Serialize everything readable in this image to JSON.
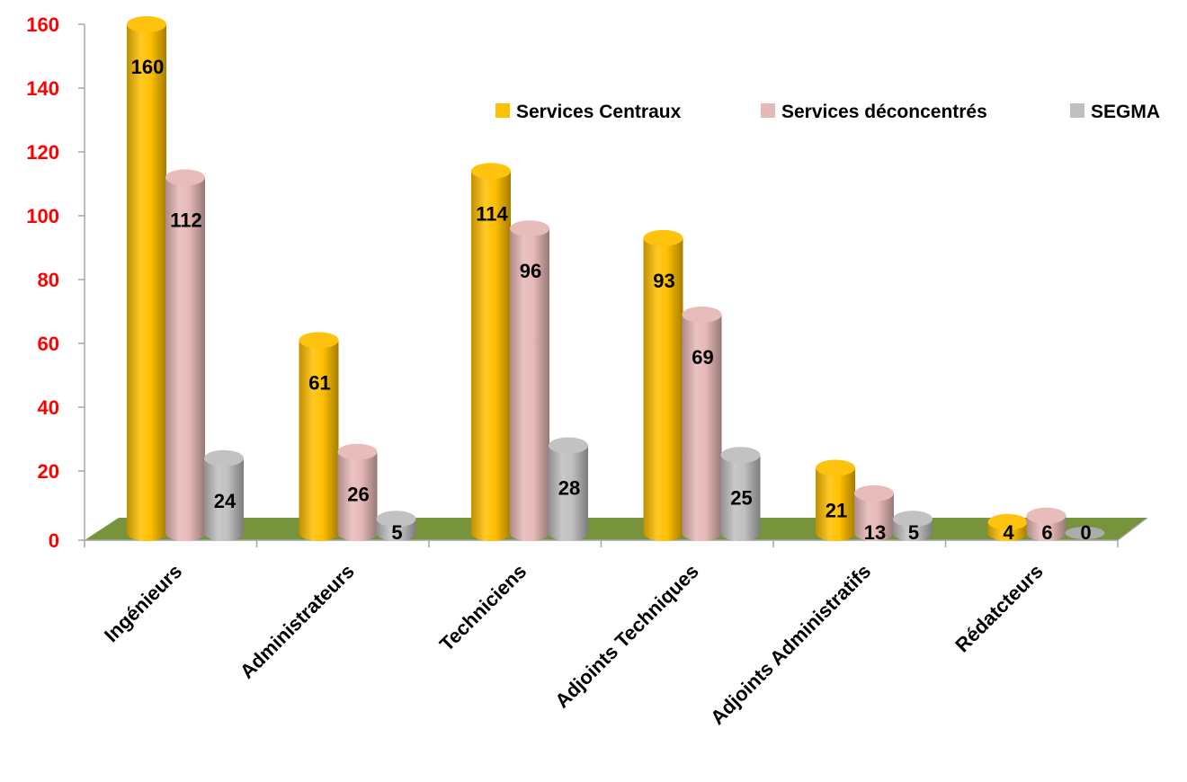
{
  "chart_data": {
    "type": "bar",
    "title": "",
    "xlabel": "",
    "ylabel": "",
    "ylim": [
      0,
      160
    ],
    "yticks": [
      "0",
      "20",
      "40",
      "60",
      "80",
      "100",
      "120",
      "140",
      "160"
    ],
    "categories": [
      "Ingénieurs",
      "Administrateurs",
      "Techniciens",
      "Adjoints Techniques",
      "Adjoints Administratifs",
      "Rédatcteurs"
    ],
    "series": [
      {
        "name": "Services Centraux",
        "values": [
          160,
          61,
          114,
          93,
          21,
          4
        ],
        "color": "#ffc000"
      },
      {
        "name": "Services déconcentrés",
        "values": [
          112,
          26,
          96,
          69,
          13,
          6
        ],
        "color": "#e6b8b7"
      },
      {
        "name": "SEGMA",
        "values": [
          24,
          5,
          28,
          25,
          5,
          0
        ],
        "color": "#bfbfbf"
      }
    ],
    "legend_position": "top-right",
    "floor_color": "#77933c",
    "grid": false
  }
}
